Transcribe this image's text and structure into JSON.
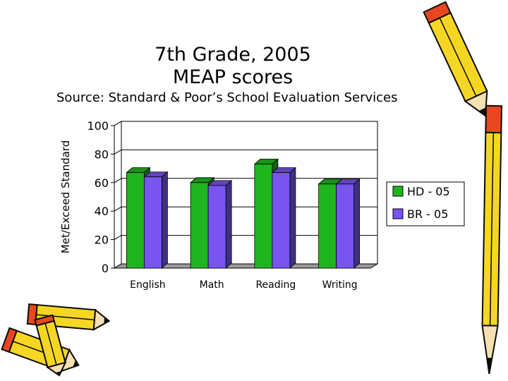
{
  "title_line1": "7th Grade, 2005",
  "title_line2": "MEAP scores",
  "source": "Source: Standard & Poor’s School Evaluation Services",
  "chart_data": {
    "type": "bar",
    "categories": [
      "English",
      "Math",
      "Reading",
      "Writing"
    ],
    "series": [
      {
        "name": "HD - 05",
        "values": [
          67,
          60,
          73,
          59
        ],
        "color": "#1fb51f"
      },
      {
        "name": "BR - 05",
        "values": [
          64,
          58,
          67,
          59
        ],
        "color": "#7755ee"
      }
    ],
    "ylabel": "Met/Exceed Standard",
    "ylim": [
      0,
      100
    ],
    "yticks": [
      0,
      20,
      40,
      60,
      80,
      100
    ],
    "grid": true,
    "legend": "right"
  },
  "decoration": {
    "pencil_colors": [
      "#f5d623",
      "#e8461e",
      "#0a0a0a"
    ]
  }
}
